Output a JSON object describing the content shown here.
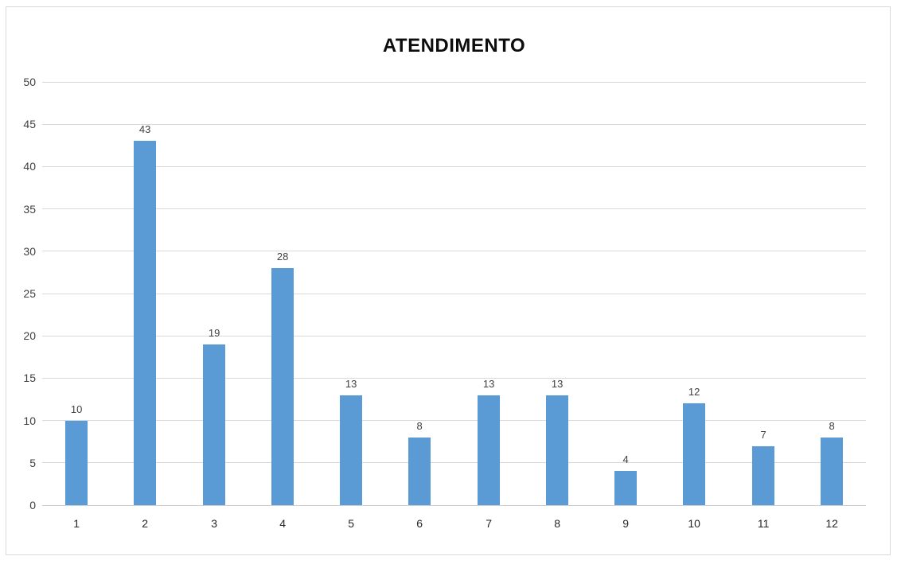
{
  "chart_data": {
    "type": "bar",
    "title": "ATENDIMENTO",
    "categories": [
      "1",
      "2",
      "3",
      "4",
      "5",
      "6",
      "7",
      "8",
      "9",
      "10",
      "11",
      "12"
    ],
    "values": [
      10,
      43,
      19,
      28,
      13,
      8,
      13,
      13,
      4,
      12,
      7,
      8
    ],
    "xlabel": "",
    "ylabel": "",
    "ylim": [
      0,
      50
    ],
    "ytick_step": 5,
    "yticks": [
      0,
      5,
      10,
      15,
      20,
      25,
      30,
      35,
      40,
      45,
      50
    ],
    "grid": true,
    "legend_position": "none",
    "data_labels": true,
    "colors": {
      "bar": "#5b9bd5",
      "gridline": "#d9d9d9",
      "axis_line": "#cdcdcd",
      "data_label": "#404040",
      "x_tick_label": "#262626",
      "y_tick_label": "#404040",
      "title": "#0d0d0d",
      "chart_border": "#d9d9d9",
      "background": "#ffffff"
    }
  }
}
